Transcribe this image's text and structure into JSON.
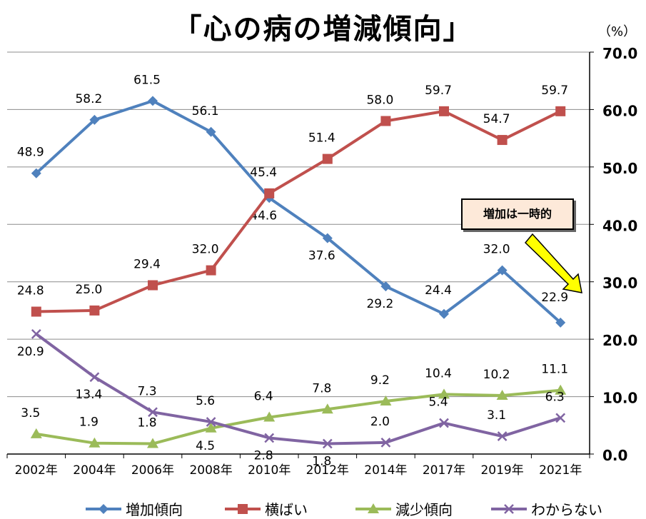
{
  "chart_data": {
    "type": "line",
    "title": "「心の病の増減傾向」",
    "unit": "（%）",
    "categories": [
      "2002年",
      "2004年",
      "2006年",
      "2008年",
      "2010年",
      "2012年",
      "2014年",
      "2017年",
      "2019年",
      "2021年"
    ],
    "ylim": [
      0,
      70
    ],
    "yticks": [
      "0.0",
      "10.0",
      "20.0",
      "30.0",
      "40.0",
      "50.0",
      "60.0",
      "70.0"
    ],
    "y_axis_side": "right",
    "grid": true,
    "legend_position": "bottom",
    "series": [
      {
        "name": "増加傾向",
        "color": "#4f81bd",
        "marker": "diamond",
        "values": [
          48.9,
          58.2,
          61.5,
          56.1,
          44.6,
          37.6,
          29.2,
          24.4,
          32.0,
          22.9
        ],
        "labels": [
          "48.9",
          "58.2",
          "61.5",
          "56.1",
          "44.6",
          "37.6",
          "29.2",
          "24.4",
          "32.0",
          "22.9"
        ]
      },
      {
        "name": "横ばい",
        "color": "#c0504d",
        "marker": "square",
        "values": [
          24.8,
          25.0,
          29.4,
          32.0,
          45.4,
          51.4,
          58.0,
          59.7,
          54.7,
          59.7
        ],
        "labels": [
          "24.8",
          "25.0",
          "29.4",
          "32.0",
          "45.4",
          "51.4",
          "58.0",
          "59.7",
          "54.7",
          "59.7"
        ]
      },
      {
        "name": "減少傾向",
        "color": "#9bbb59",
        "marker": "triangle",
        "values": [
          3.5,
          1.9,
          1.8,
          4.5,
          6.4,
          7.8,
          9.2,
          10.4,
          10.2,
          11.1
        ],
        "labels": [
          "3.5",
          "1.9",
          "1.8",
          "4.5",
          "6.4",
          "7.8",
          "9.2",
          "10.4",
          "10.2",
          "11.1"
        ]
      },
      {
        "name": "わからない",
        "color": "#8064a2",
        "marker": "x",
        "values": [
          20.9,
          13.4,
          7.3,
          5.6,
          2.8,
          1.8,
          2.0,
          5.4,
          3.1,
          6.3
        ],
        "labels": [
          "20.9",
          "13.4",
          "7.3",
          "5.6",
          "2.8",
          "1.8",
          "2.0",
          "5.4",
          "3.1",
          "6.3"
        ]
      }
    ],
    "annotation": {
      "text": "増加は一時的",
      "arrow_color": "#ffff00"
    }
  }
}
